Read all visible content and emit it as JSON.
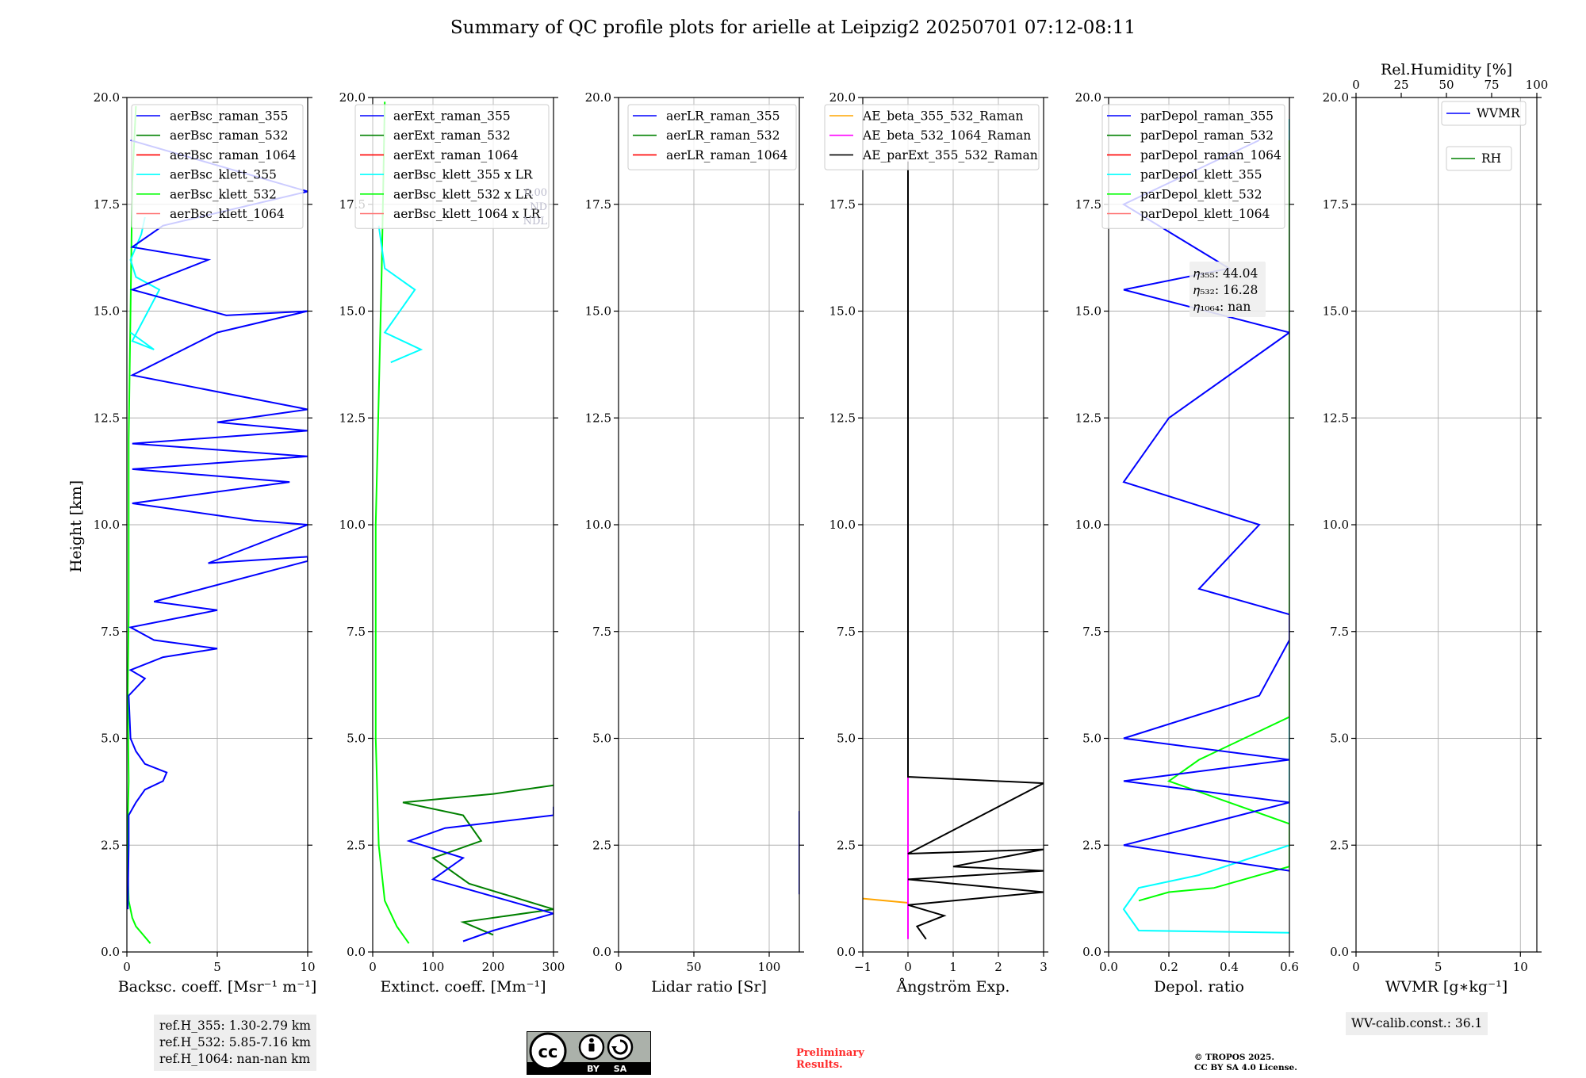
{
  "title": "Summary of QC profile plots for arielle at Leipzig2 20250701 07:12-08:11",
  "y_axis_label": "Height [km]",
  "y_ticks": [
    "0.0",
    "2.5",
    "5.0",
    "7.5",
    "10.0",
    "12.5",
    "15.0",
    "17.5",
    "20.0"
  ],
  "colors": {
    "blue": "#0000ff",
    "green": "#008000",
    "red": "#ff0000",
    "cyan": "#00ffff",
    "lime": "#00ff00",
    "salmon": "#ff7070",
    "orange": "#ffa500",
    "magenta": "#ff00ff",
    "black": "#000000"
  },
  "chart_data": [
    {
      "type": "line",
      "xlabel": "Backsc. coeff. [Msr⁻¹ m⁻¹]",
      "xlim": [
        0,
        10
      ],
      "ylim": [
        0,
        20
      ],
      "xticks": [
        "0",
        "5",
        "10"
      ],
      "legend": [
        "aerBsc_raman_355",
        "aerBsc_raman_532",
        "aerBsc_raman_1064",
        "aerBsc_klett_355",
        "aerBsc_klett_532",
        "aerBsc_klett_1064"
      ],
      "legend_placement": "upper-right",
      "series": [
        {
          "name": "aerBsc_klett_532",
          "color": "lime",
          "points": [
            [
              1.3,
              0.2
            ],
            [
              0.9,
              0.4
            ],
            [
              0.5,
              0.6
            ],
            [
              0.3,
              0.8
            ],
            [
              0.1,
              1.2
            ],
            [
              0.05,
              2.0
            ],
            [
              0.05,
              3.0
            ],
            [
              0.1,
              4.0
            ],
            [
              0.05,
              6.0
            ],
            [
              0.1,
              8.0
            ],
            [
              0.1,
              12.0
            ],
            [
              0.2,
              15.0
            ],
            [
              0.3,
              18.0
            ],
            [
              0.5,
              19.8
            ]
          ]
        },
        {
          "name": "aerBsc_klett_355",
          "color": "cyan",
          "points": [
            [
              0.2,
              14.5
            ],
            [
              1.5,
              14.1
            ],
            [
              0.3,
              14.3
            ],
            [
              1.8,
              15.5
            ],
            [
              0.5,
              15.8
            ],
            [
              0.2,
              16.2
            ],
            [
              0.8,
              16.8
            ],
            [
              1.0,
              17.2
            ]
          ]
        },
        {
          "name": "aerBsc_raman_355",
          "color": "blue",
          "points": [
            [
              0.05,
              1.0
            ],
            [
              0.1,
              2.5
            ],
            [
              0.1,
              3.2
            ],
            [
              0.5,
              3.5
            ],
            [
              1.0,
              3.8
            ],
            [
              2.0,
              4.0
            ],
            [
              2.2,
              4.2
            ],
            [
              1.0,
              4.4
            ],
            [
              0.5,
              4.7
            ],
            [
              0.2,
              5.0
            ],
            [
              0.1,
              6.0
            ],
            [
              1.0,
              6.4
            ],
            [
              0.2,
              6.6
            ],
            [
              2.0,
              6.9
            ],
            [
              5.0,
              7.1
            ],
            [
              1.5,
              7.3
            ],
            [
              0.2,
              7.6
            ],
            [
              5.0,
              8.0
            ],
            [
              1.5,
              8.2
            ],
            [
              10,
              9.15
            ],
            [
              10,
              9.25
            ],
            [
              4.5,
              9.1
            ],
            [
              10,
              10.0
            ],
            [
              7.0,
              10.1
            ],
            [
              0.3,
              10.5
            ],
            [
              9.0,
              11.0
            ],
            [
              0.3,
              11.3
            ],
            [
              10,
              11.6
            ],
            [
              0.3,
              11.9
            ],
            [
              10,
              12.2
            ],
            [
              5.0,
              12.4
            ],
            [
              10,
              12.7
            ],
            [
              0.3,
              13.5
            ],
            [
              5.0,
              14.5
            ],
            [
              10,
              15.0
            ],
            [
              5.5,
              14.9
            ],
            [
              0.3,
              15.5
            ],
            [
              4.5,
              16.2
            ],
            [
              0.3,
              16.5
            ],
            [
              2.0,
              17.0
            ],
            [
              10,
              17.8
            ],
            [
              0.2,
              19.0
            ]
          ]
        }
      ]
    },
    {
      "type": "line",
      "xlabel": "Extinct. coeff. [Mm⁻¹]",
      "xlim": [
        0,
        300
      ],
      "ylim": [
        0,
        20
      ],
      "xticks": [
        "0",
        "100",
        "200",
        "300"
      ],
      "legend": [
        "aerExt_raman_355",
        "aerExt_raman_532",
        "aerExt_raman_1064",
        "aerBsc_klett_355 x LR",
        "aerBsc_klett_532 x LR",
        "aerBsc_klett_1064 x LR"
      ],
      "legend_placement": "upper-right",
      "series": [
        {
          "name": "aerBsc_klett_532 x LR",
          "color": "lime",
          "points": [
            [
              60,
              0.2
            ],
            [
              40,
              0.6
            ],
            [
              20,
              1.2
            ],
            [
              10,
              2.5
            ],
            [
              5,
              5
            ],
            [
              5,
              10
            ],
            [
              10,
              13
            ],
            [
              15,
              16
            ],
            [
              20,
              19.9
            ]
          ]
        },
        {
          "name": "aerBsc_klett_355 x LR",
          "color": "cyan",
          "points": [
            [
              30,
              13.8
            ],
            [
              80,
              14.1
            ],
            [
              20,
              14.5
            ],
            [
              70,
              15.5
            ],
            [
              20,
              16.0
            ],
            [
              10,
              17.0
            ]
          ]
        },
        {
          "name": "aerExt_raman_532",
          "color": "green",
          "points": [
            [
              300,
              3.9
            ],
            [
              200,
              3.7
            ],
            [
              50,
              3.5
            ],
            [
              150,
              3.2
            ],
            [
              180,
              2.6
            ],
            [
              100,
              2.2
            ],
            [
              160,
              1.6
            ],
            [
              300,
              1.0
            ],
            [
              150,
              0.7
            ],
            [
              200,
              0.4
            ]
          ]
        },
        {
          "name": "aerExt_raman_355",
          "color": "blue",
          "points": [
            [
              300,
              3.4
            ],
            [
              300,
              3.2
            ],
            [
              120,
              2.9
            ],
            [
              60,
              2.6
            ],
            [
              150,
              2.2
            ],
            [
              100,
              1.7
            ],
            [
              300,
              0.9
            ],
            [
              200,
              0.5
            ],
            [
              150,
              0.25
            ]
          ]
        }
      ]
    },
    {
      "type": "line",
      "xlabel": "Lidar ratio [Sr]",
      "xlim": [
        0,
        120
      ],
      "ylim": [
        0,
        20
      ],
      "xticks": [
        "0",
        "50",
        "100"
      ],
      "legend": [
        "aerLR_raman_355",
        "aerLR_raman_532",
        "aerLR_raman_1064"
      ],
      "legend_placement": "upper-right",
      "series": [
        {
          "name": "aerLR_raman_355",
          "color": "blue",
          "points": [
            [
              120,
              3.3
            ],
            [
              120,
              3.25
            ],
            [
              120,
              2.7
            ],
            [
              120,
              2.5
            ],
            [
              120,
              2.3
            ],
            [
              120,
              2.1
            ],
            [
              120,
              1.9
            ],
            [
              120,
              1.7
            ],
            [
              120,
              1.5
            ],
            [
              120,
              1.35
            ]
          ]
        }
      ]
    },
    {
      "type": "line",
      "xlabel": "Ångström Exp.",
      "xlim": [
        -1,
        3
      ],
      "ylim": [
        0,
        20
      ],
      "xticks": [
        "−1",
        "0",
        "1",
        "2",
        "3"
      ],
      "legend": [
        "AE_beta_355_532_Raman",
        "AE_beta_532_1064_Raman",
        "AE_parExt_355_532_Raman"
      ],
      "legend_placement": "upper-right",
      "series": [
        {
          "name": "AE_beta_355_532_Raman",
          "color": "orange",
          "points": [
            [
              -1,
              1.25
            ],
            [
              0,
              1.15
            ]
          ]
        },
        {
          "name": "AE_beta_532_1064_Raman",
          "color": "magenta",
          "points": [
            [
              0,
              0.3
            ],
            [
              0,
              18.5
            ]
          ]
        },
        {
          "name": "AE_parExt_355_532_Raman",
          "color": "black",
          "points": [
            [
              0,
              18.5
            ],
            [
              0,
              4.1
            ],
            [
              3,
              3.95
            ],
            [
              0,
              2.3
            ],
            [
              3,
              2.4
            ],
            [
              1,
              2.0
            ],
            [
              3,
              1.9
            ],
            [
              0,
              1.7
            ],
            [
              3,
              1.4
            ],
            [
              0,
              1.1
            ],
            [
              0.8,
              0.85
            ],
            [
              0.2,
              0.6
            ],
            [
              0.4,
              0.3
            ]
          ]
        }
      ]
    },
    {
      "type": "line",
      "xlabel": "Depol. ratio",
      "xlim": [
        0,
        0.6
      ],
      "ylim": [
        0,
        20
      ],
      "xticks": [
        "0.0",
        "0.2",
        "0.4",
        "0.6"
      ],
      "legend": [
        "parDepol_raman_355",
        "parDepol_raman_532",
        "parDepol_raman_1064",
        "parDepol_klett_355",
        "parDepol_klett_532",
        "parDepol_klett_1064"
      ],
      "legend_placement": "upper-right",
      "annotation": {
        "lines": [
          "𝜂₃₅₅: 44.04",
          "𝜂₅₃₂: 16.28",
          "𝜂₁₀₆₄: nan"
        ]
      },
      "series": [
        {
          "name": "parDepol_klett_355",
          "color": "cyan",
          "points": [
            [
              0.6,
              0.45
            ],
            [
              0.1,
              0.5
            ],
            [
              0.05,
              1.0
            ],
            [
              0.1,
              1.5
            ],
            [
              0.3,
              1.8
            ],
            [
              0.6,
              2.5
            ],
            [
              0.6,
              3.8
            ],
            [
              0.6,
              5.0
            ],
            [
              0.6,
              7.5
            ],
            [
              0.6,
              9.0
            ],
            [
              0.6,
              11.0
            ],
            [
              0.6,
              13.5
            ],
            [
              0.6,
              15.0
            ],
            [
              0.6,
              16.5
            ],
            [
              0.6,
              19.5
            ]
          ]
        },
        {
          "name": "parDepol_klett_532",
          "color": "lime",
          "points": [
            [
              0.1,
              1.2
            ],
            [
              0.2,
              1.4
            ],
            [
              0.35,
              1.5
            ],
            [
              0.6,
              2.0
            ],
            [
              0.6,
              3.0
            ],
            [
              0.2,
              4.0
            ],
            [
              0.3,
              4.5
            ],
            [
              0.6,
              5.5
            ],
            [
              0.6,
              7.0
            ],
            [
              0.6,
              8.0
            ],
            [
              0.6,
              9.5
            ],
            [
              0.6,
              12.0
            ],
            [
              0.6,
              14.0
            ],
            [
              0.6,
              15.5
            ],
            [
              0.6,
              17.0
            ],
            [
              0.6,
              19.0
            ]
          ]
        },
        {
          "name": "parDepol_raman_355",
          "color": "blue",
          "points": [
            [
              0.6,
              1.9
            ],
            [
              0.05,
              2.5
            ],
            [
              0.6,
              3.5
            ],
            [
              0.05,
              4.0
            ],
            [
              0.6,
              4.5
            ],
            [
              0.05,
              5.0
            ],
            [
              0.5,
              6.0
            ],
            [
              0.6,
              7.3
            ],
            [
              0.6,
              7.9
            ],
            [
              0.3,
              8.5
            ],
            [
              0.5,
              10.0
            ],
            [
              0.05,
              11.0
            ],
            [
              0.2,
              12.5
            ],
            [
              0.6,
              14.5
            ],
            [
              0.05,
              15.5
            ],
            [
              0.4,
              16.0
            ],
            [
              0.05,
              17.5
            ],
            [
              0.5,
              19.0
            ]
          ]
        }
      ]
    },
    {
      "type": "line",
      "xlabel": "WVMR [g∗kg⁻¹]",
      "xlim": [
        0,
        11
      ],
      "ylim": [
        0,
        20
      ],
      "xticks": [
        "0",
        "5",
        "10"
      ],
      "top_axis": {
        "label": "Rel.Humidity [%]",
        "ticks": [
          "0",
          "25",
          "50",
          "75",
          "100"
        ]
      },
      "legend": [
        "WVMR",
        "RH"
      ],
      "legend_placement": "upper-right",
      "series": []
    }
  ],
  "panel1_ghost": [
    "0.00",
    "ND",
    "NDL"
  ],
  "refs": [
    "ref.H_355: 1.30-2.79 km",
    "ref.H_532: 5.85-7.16 km",
    "ref.H_1064: nan-nan km"
  ],
  "wv_calib": "WV-calib.const.: 36.1",
  "cc_badge": {
    "by": "BY",
    "sa": "SA"
  },
  "preliminary": [
    "Preliminary",
    "Results."
  ],
  "copyright": [
    "© TROPOS 2025.",
    "CC BY SA 4.0 License."
  ]
}
